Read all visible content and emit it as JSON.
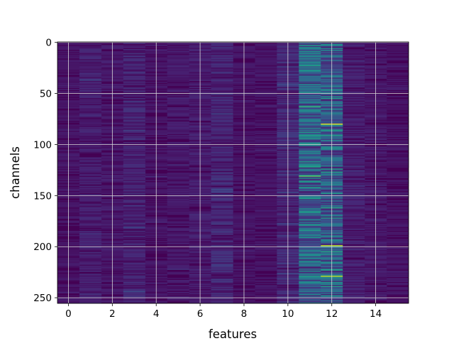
{
  "chart_data": {
    "type": "heatmap",
    "title": "",
    "xlabel": "features",
    "ylabel": "channels",
    "x_range": [
      -0.5,
      15.5
    ],
    "y_range": [
      -0.5,
      255.5
    ],
    "y_inverted": true,
    "x_ticks": [
      0,
      2,
      4,
      6,
      8,
      10,
      12,
      14
    ],
    "y_ticks": [
      0,
      50,
      100,
      150,
      200,
      250
    ],
    "grid": true,
    "colormap": "viridis",
    "n_features": 16,
    "n_channels": 256,
    "column_mean_intensity": [
      0.05,
      0.08,
      0.06,
      0.09,
      0.05,
      0.06,
      0.07,
      0.1,
      0.05,
      0.05,
      0.11,
      0.3,
      0.28,
      0.08,
      0.06,
      0.05
    ],
    "highlights": [
      {
        "feature": 12,
        "channel": 80,
        "value": 0.95
      },
      {
        "feature": 12,
        "channel": 199,
        "value": 0.9
      },
      {
        "feature": 12,
        "channel": 229,
        "value": 0.9
      },
      {
        "feature": 11,
        "channel": 131,
        "value": 0.75
      },
      {
        "feature": 11,
        "channel": 63,
        "value": 0.65
      },
      {
        "feature": 12,
        "channel": 162,
        "value": 0.6
      },
      {
        "feature": 12,
        "channel": 205,
        "value": 0.6
      },
      {
        "feature": 11,
        "channel": 23,
        "value": 0.55
      },
      {
        "feature": 11,
        "channel": 49,
        "value": 0.5
      },
      {
        "feature": 12,
        "channel": 50,
        "value": 0.5
      }
    ],
    "colors": {
      "background": "#440154",
      "grid": "#d8d8d8"
    }
  }
}
